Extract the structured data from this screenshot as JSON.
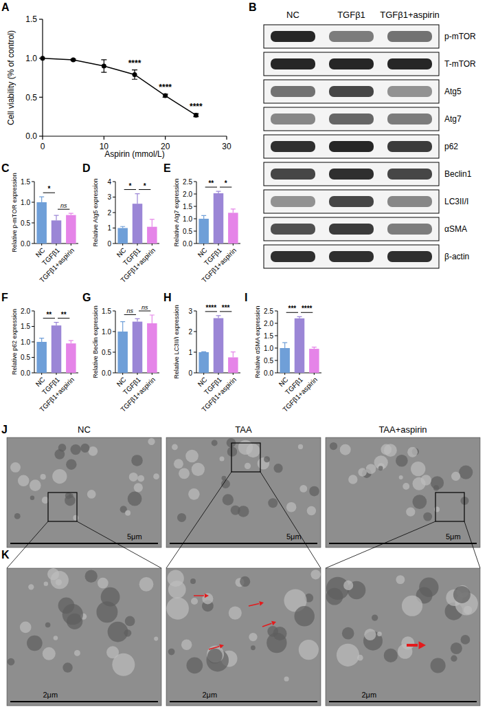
{
  "chart_data": [
    {
      "panel": "A",
      "type": "line",
      "x": [
        0,
        5,
        10,
        15,
        20,
        25
      ],
      "values": [
        1.0,
        0.98,
        0.9,
        0.79,
        0.52,
        0.27
      ],
      "errors": [
        0,
        0.01,
        0.08,
        0.06,
        0.02,
        0.02
      ],
      "color": "#000000",
      "marker": "circle",
      "xlim": [
        0,
        30
      ],
      "xticks": [
        0,
        10,
        20,
        30
      ],
      "ylim": [
        0,
        1.5
      ],
      "yticks": [
        {
          "value": 0,
          "label": "0.0"
        },
        {
          "value": 0.5,
          "label": "0.5"
        },
        {
          "value": 1,
          "label": "1.0"
        },
        {
          "value": 1.5,
          "label": "1.5"
        }
      ],
      "x_label": "Aspirin (mmol/L)",
      "y_label": "Cell viability (% of control)",
      "annotations": [
        {
          "x": 15,
          "text": "****"
        },
        {
          "x": 20,
          "text": "****"
        },
        {
          "x": 25,
          "text": "****"
        }
      ]
    },
    {
      "panel": "C",
      "type": "bar",
      "categories": [
        "NC",
        "TGFβ1",
        "TGFβ1+aspirin"
      ],
      "values": [
        1.0,
        0.56,
        0.69
      ],
      "errors": [
        0.13,
        0.12,
        0.04
      ],
      "colors": [
        "#6f9fd8",
        "#9b86d6",
        "#e584e8"
      ],
      "ylim": [
        0,
        1.5
      ],
      "yticks": [
        {
          "value": 0,
          "label": "0.0"
        },
        {
          "value": 0.5,
          "label": "0.5"
        },
        {
          "value": 1,
          "label": "1.0"
        },
        {
          "value": 1.5,
          "label": "1.5"
        }
      ],
      "y_label": "Relative p-mTOR expression",
      "comparisons": [
        {
          "groups": [
            "NC",
            "TGFβ1"
          ],
          "label": "*"
        },
        {
          "groups": [
            "TGFβ1",
            "TGFβ1+aspirin"
          ],
          "label": "ns"
        }
      ]
    },
    {
      "panel": "D",
      "type": "bar",
      "categories": [
        "NC",
        "TGFβ1",
        "TGFβ1+aspirin"
      ],
      "values": [
        1.0,
        2.57,
        1.08
      ],
      "errors": [
        0.1,
        0.65,
        0.48
      ],
      "colors": [
        "#6f9fd8",
        "#9b86d6",
        "#e584e8"
      ],
      "ylim": [
        0,
        4
      ],
      "yticks": [
        0,
        1,
        2,
        3,
        4
      ],
      "y_label": "Relative Atg5 expression",
      "comparisons": [
        {
          "groups": [
            "NC",
            "TGFβ1"
          ],
          "label": "*"
        },
        {
          "groups": [
            "TGFβ1",
            "TGFβ1+aspirin"
          ],
          "label": "*"
        }
      ]
    },
    {
      "panel": "E",
      "type": "bar",
      "categories": [
        "NC",
        "TGFβ1",
        "TGFβ1+aspirin"
      ],
      "values": [
        1.0,
        2.03,
        1.24
      ],
      "errors": [
        0.13,
        0.08,
        0.15
      ],
      "colors": [
        "#6f9fd8",
        "#9b86d6",
        "#e584e8"
      ],
      "ylim": [
        0,
        2.5
      ],
      "yticks": [
        {
          "value": 0,
          "label": "0.0"
        },
        {
          "value": 0.5,
          "label": "0.5"
        },
        {
          "value": 1,
          "label": "1.0"
        },
        {
          "value": 1.5,
          "label": "1.5"
        },
        {
          "value": 2,
          "label": "2.0"
        },
        {
          "value": 2.5,
          "label": "2.5"
        }
      ],
      "y_label": "Relative Atg7 expression",
      "comparisons": [
        {
          "groups": [
            "NC",
            "TGFβ1"
          ],
          "label": "**"
        },
        {
          "groups": [
            "TGFβ1",
            "TGFβ1+aspirin"
          ],
          "label": "*"
        }
      ]
    },
    {
      "panel": "F",
      "type": "bar",
      "categories": [
        "NC",
        "TGFβ1",
        "TGFβ1+aspirin"
      ],
      "values": [
        1.0,
        1.53,
        0.95
      ],
      "errors": [
        0.12,
        0.1,
        0.09
      ],
      "colors": [
        "#6f9fd8",
        "#9b86d6",
        "#e584e8"
      ],
      "ylim": [
        0,
        2
      ],
      "yticks": [
        {
          "value": 0,
          "label": "0.0"
        },
        {
          "value": 0.5,
          "label": "0.5"
        },
        {
          "value": 1,
          "label": "1.0"
        },
        {
          "value": 1.5,
          "label": "1.5"
        },
        {
          "value": 2,
          "label": "2.0"
        }
      ],
      "y_label": "Relative p62 expression",
      "comparisons": [
        {
          "groups": [
            "NC",
            "TGFβ1"
          ],
          "label": "**"
        },
        {
          "groups": [
            "TGFβ1",
            "TGFβ1+aspirin"
          ],
          "label": "**"
        }
      ]
    },
    {
      "panel": "G",
      "type": "bar",
      "categories": [
        "NC",
        "TGFβ1",
        "TGFβ1+aspirin"
      ],
      "values": [
        1.0,
        1.24,
        1.2
      ],
      "errors": [
        0.24,
        0.07,
        0.2
      ],
      "colors": [
        "#6f9fd8",
        "#9b86d6",
        "#e584e8"
      ],
      "ylim": [
        0,
        1.5
      ],
      "yticks": [
        {
          "value": 0,
          "label": "0.0"
        },
        {
          "value": 0.5,
          "label": "0.5"
        },
        {
          "value": 1,
          "label": "1.0"
        },
        {
          "value": 1.5,
          "label": "1.5"
        }
      ],
      "y_label": "Relative Beclin expression",
      "comparisons": [
        {
          "groups": [
            "NC",
            "TGFβ1"
          ],
          "label": "ns"
        },
        {
          "groups": [
            "TGFβ1",
            "TGFβ1+aspirin"
          ],
          "label": "ns"
        }
      ]
    },
    {
      "panel": "H",
      "type": "bar",
      "categories": [
        "NC",
        "TGFβ1",
        "TGFβ1+aspirin"
      ],
      "values": [
        1.0,
        2.65,
        0.75
      ],
      "errors": [
        0.02,
        0.12,
        0.26
      ],
      "colors": [
        "#6f9fd8",
        "#9b86d6",
        "#e584e8"
      ],
      "ylim": [
        0,
        3
      ],
      "yticks": [
        0,
        1,
        2,
        3
      ],
      "y_label": "Relative LC3II/I expression",
      "comparisons": [
        {
          "groups": [
            "NC",
            "TGFβ1"
          ],
          "label": "****"
        },
        {
          "groups": [
            "TGFβ1",
            "TGFβ1+aspirin"
          ],
          "label": "***"
        }
      ]
    },
    {
      "panel": "I",
      "type": "bar",
      "categories": [
        "NC",
        "TGFβ1",
        "TGFβ1+aspirin"
      ],
      "values": [
        1.0,
        2.2,
        0.97
      ],
      "errors": [
        0.22,
        0.07,
        0.07
      ],
      "colors": [
        "#6f9fd8",
        "#9b86d6",
        "#e584e8"
      ],
      "ylim": [
        0,
        2.5
      ],
      "yticks": [
        {
          "value": 0,
          "label": "0.0"
        },
        {
          "value": 0.5,
          "label": "0.5"
        },
        {
          "value": 1,
          "label": "1.0"
        },
        {
          "value": 1.5,
          "label": "1.5"
        },
        {
          "value": 2,
          "label": "2.0"
        },
        {
          "value": 2.5,
          "label": "2.5"
        }
      ],
      "y_label": "Relative αSMA expression",
      "comparisons": [
        {
          "groups": [
            "NC",
            "TGFβ1"
          ],
          "label": "***"
        },
        {
          "groups": [
            "TGFβ1",
            "TGFβ1+aspirin"
          ],
          "label": "****"
        }
      ]
    }
  ],
  "blot": {
    "panel": "B",
    "lanes": [
      "NC",
      "TGFβ1",
      "TGFβ1+aspirin"
    ],
    "rows": [
      "p-mTOR",
      "T-mTOR",
      "Atg5",
      "Atg7",
      "p62",
      "Beclin1",
      "LC3II/I",
      "αSMA",
      "β-actin"
    ]
  },
  "micrographs": {
    "panel_j": {
      "panel": "J",
      "images": [
        {
          "title": "NC",
          "scale_bar": "5μm"
        },
        {
          "title": "TAA",
          "scale_bar": "5μm"
        },
        {
          "title": "TAA+aspirin",
          "scale_bar": "5μm"
        }
      ]
    },
    "panel_k": {
      "panel": "K",
      "images": [
        {
          "scale_bar": "2μm"
        },
        {
          "scale_bar": "2μm"
        },
        {
          "scale_bar": "2μm"
        }
      ]
    }
  }
}
